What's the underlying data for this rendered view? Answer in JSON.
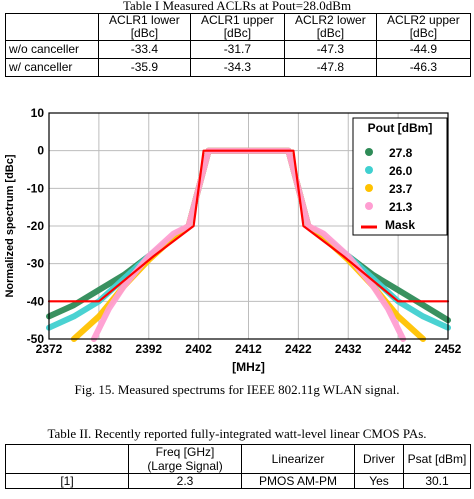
{
  "table1": {
    "caption": "Table I  Measured ACLRs at Pout=28.0dBm",
    "headers": [
      "",
      "ACLR1 lower\n[dBc]",
      "ACLR1 upper\n[dBc]",
      "ACLR2 lower\n[dBc]",
      "ACLR2 upper\n[dBc]"
    ],
    "rows": [
      {
        "label": "w/o canceller",
        "values": [
          "-33.4",
          "-31.7",
          "-47.3",
          "-44.9"
        ]
      },
      {
        "label": "w/ canceller",
        "values": [
          "-35.9",
          "-34.3",
          "-47.8",
          "-46.3"
        ]
      }
    ]
  },
  "figure": {
    "caption": "Fig. 15.  Measured spectrums for IEEE 802.11g WLAN signal."
  },
  "chart_data": {
    "type": "line",
    "xlabel": "[MHz]",
    "ylabel": "Normalized spectrum [dBc]",
    "xlim": [
      2372,
      2452
    ],
    "ylim": [
      -50,
      10
    ],
    "xticks": [
      2372,
      2382,
      2392,
      2402,
      2412,
      2422,
      2432,
      2442,
      2452
    ],
    "yticks": [
      10,
      0,
      -10,
      -20,
      -30,
      -40,
      -50
    ],
    "grid": true,
    "legend": {
      "title": "Pout [dBm]",
      "placement": "top-right"
    },
    "series": [
      {
        "name": "27.8",
        "color": "#2e8b57",
        "x": [
          2372,
          2377,
          2382,
          2387,
          2392,
          2397,
          2400,
          2402,
          2404,
          2412,
          2420,
          2422,
          2424,
          2427,
          2432,
          2437,
          2442,
          2447,
          2452
        ],
        "y": [
          -44,
          -41,
          -37,
          -33,
          -28,
          -23,
          -20,
          -10,
          0,
          0,
          0,
          -10,
          -20,
          -23,
          -28,
          -33,
          -37,
          -41,
          -45
        ]
      },
      {
        "name": "26.0",
        "color": "#40d0d0",
        "x": [
          2372,
          2377,
          2382,
          2387,
          2392,
          2397,
          2400,
          2402,
          2404,
          2412,
          2420,
          2422,
          2424,
          2427,
          2432,
          2437,
          2442,
          2447,
          2452
        ],
        "y": [
          -47,
          -44,
          -40,
          -34,
          -28,
          -23,
          -20,
          -10,
          0,
          0,
          0,
          -10,
          -20,
          -23,
          -28,
          -34,
          -40,
          -44,
          -47
        ]
      },
      {
        "name": "23.7",
        "color": "#ffc200",
        "x": [
          2377,
          2382,
          2387,
          2392,
          2397,
          2400,
          2402,
          2404,
          2412,
          2420,
          2422,
          2424,
          2427,
          2432,
          2437,
          2442,
          2447
        ],
        "y": [
          -50,
          -44,
          -36,
          -29,
          -23,
          -20,
          -10,
          0,
          0,
          0,
          -10,
          -20,
          -23,
          -29,
          -36,
          -44,
          -50
        ]
      },
      {
        "name": "21.3",
        "color": "#ff9ed2",
        "x": [
          2381,
          2384,
          2387,
          2392,
          2397,
          2400,
          2402,
          2404,
          2412,
          2420,
          2422,
          2424,
          2427,
          2432,
          2437,
          2440,
          2443
        ],
        "y": [
          -50,
          -42,
          -36,
          -28,
          -22,
          -20,
          -10,
          0,
          0,
          0,
          -10,
          -20,
          -22,
          -28,
          -36,
          -42,
          -50
        ]
      },
      {
        "name": "Mask",
        "color": "#ff0000",
        "x": [
          2372,
          2382,
          2393,
          2401,
          2403,
          2421,
          2423,
          2431,
          2442,
          2452
        ],
        "y": [
          -40,
          -40,
          -28,
          -20,
          0,
          0,
          -20,
          -28,
          -40,
          -40
        ]
      }
    ]
  },
  "table2": {
    "caption": "Table II. Recently reported fully-integrated watt-level linear CMOS PAs.",
    "headers": [
      "",
      "Freq [GHz]\n(Large Signal)",
      "Linearizer",
      "Driver",
      "Psat [dBm]"
    ],
    "rows": [
      {
        "label": "[1]",
        "values": [
          "2.3",
          "PMOS AM-PM",
          "Yes",
          "30.1"
        ]
      }
    ]
  }
}
